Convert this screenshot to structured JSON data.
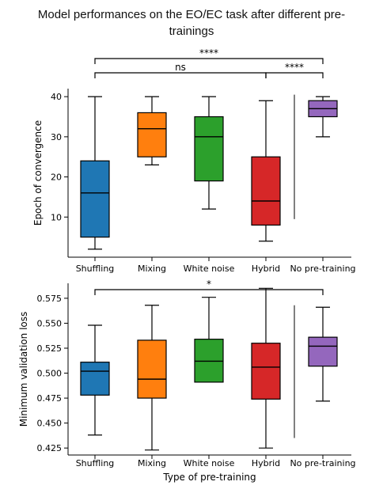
{
  "title": "Model performances on the EO/EC task after different pre-trainings",
  "chart_data": [
    {
      "type": "box",
      "ylabel": "Epoch of convergence",
      "categories": [
        "Shuffling",
        "Mixing",
        "White noise",
        "Hybrid",
        "No pre-training"
      ],
      "colors": [
        "#1f77b4",
        "#ff7f0e",
        "#2ca02c",
        "#d62728",
        "#9467bd"
      ],
      "ylim": [
        0,
        42
      ],
      "yticks": [
        "10",
        "20",
        "30",
        "40"
      ],
      "ytick_values": [
        10,
        20,
        30,
        40
      ],
      "boxes": [
        {
          "whisker_low": 2,
          "q1": 5,
          "median": 16,
          "q3": 24,
          "whisker_high": 40
        },
        {
          "whisker_low": 23,
          "q1": 25,
          "median": 32,
          "q3": 36,
          "whisker_high": 40
        },
        {
          "whisker_low": 12,
          "q1": 19,
          "median": 30,
          "q3": 35,
          "whisker_high": 40
        },
        {
          "whisker_low": 4,
          "q1": 8,
          "median": 14,
          "q3": 25,
          "whisker_high": 39
        },
        {
          "whisker_low": 30,
          "q1": 35,
          "median": 37,
          "q3": 39,
          "whisker_high": 40
        }
      ],
      "separator_line": [
        9.5,
        40.5
      ],
      "significance": [
        {
          "from": 0,
          "to": 4,
          "label": "****",
          "level": 1
        },
        {
          "from": 0,
          "to": 3,
          "label": "ns",
          "level": 0
        },
        {
          "from": 3,
          "to": 4,
          "label": "****",
          "level": 0
        }
      ]
    },
    {
      "type": "box",
      "ylabel": "Minimum validation loss",
      "xlabel": "Type of pre-training",
      "categories": [
        "Shuffling",
        "Mixing",
        "White noise",
        "Hybrid",
        "No pre-training"
      ],
      "colors": [
        "#1f77b4",
        "#ff7f0e",
        "#2ca02c",
        "#d62728",
        "#9467bd"
      ],
      "ylim": [
        0.418,
        0.59
      ],
      "yticks": [
        "0.425",
        "0.450",
        "0.475",
        "0.500",
        "0.525",
        "0.550",
        "0.575"
      ],
      "ytick_values": [
        0.425,
        0.45,
        0.475,
        0.5,
        0.525,
        0.55,
        0.575
      ],
      "boxes": [
        {
          "whisker_low": 0.438,
          "q1": 0.478,
          "median": 0.502,
          "q3": 0.511,
          "whisker_high": 0.548
        },
        {
          "whisker_low": 0.423,
          "q1": 0.475,
          "median": 0.494,
          "q3": 0.533,
          "whisker_high": 0.568
        },
        {
          "whisker_low": 0.491,
          "q1": 0.491,
          "median": 0.512,
          "q3": 0.534,
          "whisker_high": 0.576
        },
        {
          "whisker_low": 0.425,
          "q1": 0.474,
          "median": 0.506,
          "q3": 0.53,
          "whisker_high": 0.585
        },
        {
          "whisker_low": 0.472,
          "q1": 0.507,
          "median": 0.527,
          "q3": 0.536,
          "whisker_high": 0.566
        }
      ],
      "separator_line": [
        0.435,
        0.568
      ],
      "significance": [
        {
          "from": 0,
          "to": 4,
          "label": "*",
          "level": 0
        }
      ]
    }
  ]
}
